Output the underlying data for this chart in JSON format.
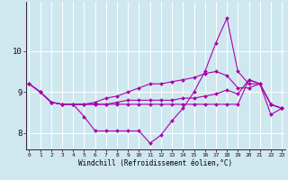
{
  "xlabel": "Windchill (Refroidissement éolien,°C)",
  "background_color": "#cfe8f0",
  "grid_color": "#ffffff",
  "line_color": "#aa00aa",
  "x_hours": [
    0,
    1,
    2,
    3,
    4,
    5,
    6,
    7,
    8,
    9,
    10,
    11,
    12,
    13,
    14,
    15,
    16,
    17,
    18,
    19,
    20,
    21,
    22,
    23
  ],
  "series1": [
    9.2,
    9.0,
    8.75,
    8.7,
    8.7,
    8.4,
    8.05,
    8.05,
    8.05,
    8.05,
    8.05,
    7.75,
    7.95,
    8.3,
    8.6,
    9.0,
    9.5,
    10.2,
    10.8,
    9.5,
    9.2,
    9.2,
    8.45,
    8.6
  ],
  "series2": [
    9.2,
    9.0,
    8.75,
    8.7,
    8.7,
    8.7,
    8.75,
    8.85,
    8.9,
    9.0,
    9.1,
    9.2,
    9.2,
    9.25,
    9.3,
    9.35,
    9.45,
    9.5,
    9.4,
    9.1,
    9.1,
    9.2,
    8.7,
    8.6
  ],
  "series3": [
    9.2,
    9.0,
    8.75,
    8.7,
    8.7,
    8.7,
    8.7,
    8.7,
    8.75,
    8.8,
    8.8,
    8.8,
    8.8,
    8.8,
    8.85,
    8.85,
    8.9,
    8.95,
    9.05,
    8.95,
    9.3,
    9.2,
    8.7,
    8.6
  ],
  "series4": [
    9.2,
    9.0,
    8.75,
    8.7,
    8.7,
    8.7,
    8.7,
    8.7,
    8.7,
    8.7,
    8.7,
    8.7,
    8.7,
    8.7,
    8.7,
    8.7,
    8.7,
    8.7,
    8.7,
    8.7,
    9.3,
    9.2,
    8.7,
    8.6
  ],
  "ylim": [
    7.6,
    11.2
  ],
  "yticks": [
    8,
    9,
    10
  ],
  "xlim": [
    -0.3,
    23.3
  ],
  "figsize": [
    3.2,
    2.0
  ],
  "dpi": 100
}
